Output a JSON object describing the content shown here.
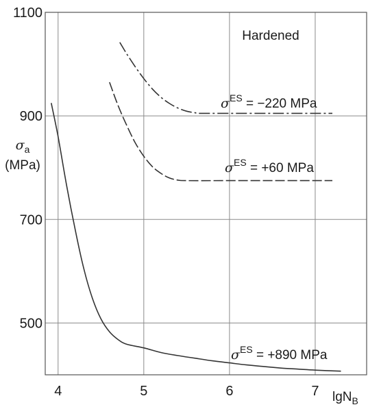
{
  "chart_data": {
    "type": "line",
    "title": "",
    "annotation": "Hardened",
    "xlabel": {
      "main": "lgN",
      "sub": "B"
    },
    "ylabel": {
      "symbol": "σ",
      "sub": "a",
      "unit": "(MPa)"
    },
    "xlim": [
      3.85,
      7.6
    ],
    "ylim": [
      400,
      1100
    ],
    "xticks": [
      4,
      5,
      6,
      7
    ],
    "yticks": [
      500,
      700,
      900,
      1100
    ],
    "grid": true,
    "series": [
      {
        "name": "σ^ES = −220 MPa",
        "label": {
          "symbol": "σ",
          "sup": "ES",
          "text": " = −220 MPa"
        },
        "style": "dashdot",
        "points": [
          [
            4.72,
            1042
          ],
          [
            4.8,
            1020
          ],
          [
            4.9,
            995
          ],
          [
            5.0,
            972
          ],
          [
            5.1,
            952
          ],
          [
            5.2,
            936
          ],
          [
            5.3,
            924
          ],
          [
            5.4,
            915
          ],
          [
            5.5,
            909
          ],
          [
            5.6,
            906
          ],
          [
            5.65,
            905
          ],
          [
            6.0,
            905
          ],
          [
            6.5,
            905
          ],
          [
            7.2,
            905
          ]
        ]
      },
      {
        "name": "σ^ES = +60 MPa",
        "label": {
          "symbol": "σ",
          "sup": "ES",
          "text": " = +60 MPa"
        },
        "style": "dashed",
        "points": [
          [
            4.6,
            965
          ],
          [
            4.7,
            920
          ],
          [
            4.8,
            882
          ],
          [
            4.9,
            848
          ],
          [
            5.0,
            822
          ],
          [
            5.1,
            802
          ],
          [
            5.2,
            789
          ],
          [
            5.3,
            780
          ],
          [
            5.4,
            776
          ],
          [
            5.5,
            775
          ],
          [
            6.0,
            775
          ],
          [
            6.5,
            775
          ],
          [
            7.2,
            775
          ]
        ]
      },
      {
        "name": "σ^ES = +890 MPa",
        "label": {
          "symbol": "σ",
          "sup": "ES",
          "text": " = +890 MPa"
        },
        "style": "solid",
        "points": [
          [
            3.92,
            925
          ],
          [
            4.0,
            860
          ],
          [
            4.1,
            765
          ],
          [
            4.2,
            680
          ],
          [
            4.3,
            605
          ],
          [
            4.4,
            548
          ],
          [
            4.5,
            508
          ],
          [
            4.6,
            483
          ],
          [
            4.7,
            468
          ],
          [
            4.8,
            459
          ],
          [
            5.0,
            452
          ],
          [
            5.2,
            443
          ],
          [
            5.4,
            437
          ],
          [
            5.6,
            432
          ],
          [
            5.8,
            427
          ],
          [
            6.0,
            423
          ],
          [
            6.2,
            419
          ],
          [
            6.4,
            416
          ],
          [
            6.6,
            413
          ],
          [
            6.8,
            411
          ],
          [
            7.0,
            409
          ],
          [
            7.3,
            407
          ]
        ]
      }
    ]
  }
}
